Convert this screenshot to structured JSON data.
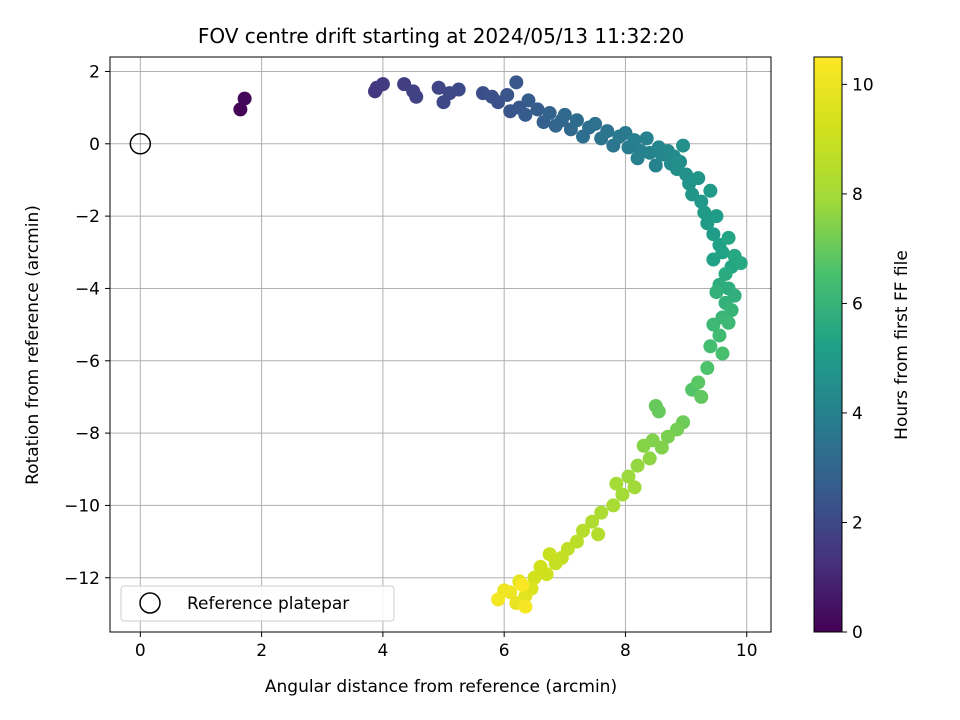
{
  "chart_data": {
    "type": "scatter",
    "title": "FOV centre drift starting at 2024/05/13 11:32:20",
    "xlabel": "Angular distance from reference (arcmin)",
    "ylabel": "Rotation from reference (arcmin)",
    "xlim": [
      -0.5,
      10.4
    ],
    "ylim": [
      -13.5,
      2.4
    ],
    "xticks": [
      0,
      2,
      4,
      6,
      8,
      10
    ],
    "yticks": [
      2,
      0,
      -2,
      -4,
      -6,
      -8,
      -10,
      -12
    ],
    "grid": true,
    "legend": {
      "placement": "lower-left",
      "entries": [
        "Reference platepar"
      ]
    },
    "reference_point": {
      "x": 0,
      "y": 0,
      "label": "Reference platepar"
    },
    "colorbar": {
      "label": "Hours from first FF file",
      "colormap": "viridis",
      "range": [
        0,
        10.5
      ],
      "ticks": [
        0,
        2,
        4,
        6,
        8,
        10
      ]
    },
    "series": [
      {
        "points": [
          [
            1.65,
            0.95,
            0.1
          ],
          [
            1.72,
            1.25,
            0.2
          ],
          [
            3.87,
            1.45,
            1.5
          ],
          [
            3.9,
            1.55,
            1.5
          ],
          [
            4.0,
            1.65,
            1.6
          ],
          [
            4.35,
            1.65,
            1.7
          ],
          [
            4.5,
            1.45,
            1.8
          ],
          [
            4.55,
            1.3,
            1.8
          ],
          [
            4.92,
            1.55,
            1.9
          ],
          [
            5.0,
            1.15,
            2.0
          ],
          [
            5.1,
            1.4,
            2.0
          ],
          [
            5.25,
            1.5,
            2.1
          ],
          [
            5.65,
            1.4,
            2.2
          ],
          [
            5.8,
            1.3,
            2.3
          ],
          [
            5.9,
            1.15,
            2.3
          ],
          [
            6.05,
            1.35,
            2.4
          ],
          [
            6.1,
            0.9,
            2.4
          ],
          [
            6.2,
            1.7,
            2.5
          ],
          [
            6.25,
            1.0,
            2.5
          ],
          [
            6.35,
            0.8,
            2.6
          ],
          [
            6.4,
            1.2,
            2.6
          ],
          [
            6.55,
            0.95,
            2.7
          ],
          [
            6.65,
            0.6,
            2.8
          ],
          [
            6.75,
            0.85,
            2.9
          ],
          [
            6.85,
            0.5,
            3.0
          ],
          [
            6.95,
            0.65,
            3.0
          ],
          [
            7.0,
            0.8,
            3.1
          ],
          [
            7.1,
            0.4,
            3.1
          ],
          [
            7.2,
            0.65,
            3.2
          ],
          [
            7.3,
            0.2,
            3.3
          ],
          [
            7.4,
            0.45,
            3.3
          ],
          [
            7.5,
            0.55,
            3.4
          ],
          [
            7.6,
            0.15,
            3.5
          ],
          [
            7.7,
            0.35,
            3.5
          ],
          [
            7.8,
            -0.05,
            3.6
          ],
          [
            7.9,
            0.2,
            3.7
          ],
          [
            8.0,
            0.3,
            3.7
          ],
          [
            8.05,
            -0.1,
            3.8
          ],
          [
            8.15,
            0.1,
            3.9
          ],
          [
            8.2,
            -0.4,
            4.0
          ],
          [
            8.25,
            -0.2,
            4.0
          ],
          [
            8.35,
            0.15,
            4.0
          ],
          [
            8.4,
            -0.25,
            4.1
          ],
          [
            8.5,
            -0.6,
            4.1
          ],
          [
            8.55,
            -0.1,
            4.2
          ],
          [
            8.6,
            -0.3,
            4.2
          ],
          [
            8.7,
            -0.2,
            4.3
          ],
          [
            8.75,
            -0.55,
            4.4
          ],
          [
            8.8,
            -0.35,
            4.4
          ],
          [
            8.85,
            -0.7,
            4.5
          ],
          [
            8.9,
            -0.5,
            4.5
          ],
          [
            8.95,
            -0.05,
            4.6
          ],
          [
            9.0,
            -0.85,
            4.6
          ],
          [
            9.05,
            -1.1,
            4.7
          ],
          [
            9.1,
            -1.4,
            4.8
          ],
          [
            9.2,
            -0.95,
            4.8
          ],
          [
            9.25,
            -1.6,
            4.9
          ],
          [
            9.3,
            -1.9,
            5.0
          ],
          [
            9.35,
            -2.2,
            5.0
          ],
          [
            9.4,
            -1.3,
            5.0
          ],
          [
            9.45,
            -2.5,
            5.1
          ],
          [
            9.5,
            -2.0,
            5.1
          ],
          [
            9.55,
            -2.8,
            5.2
          ],
          [
            9.45,
            -3.2,
            5.3
          ],
          [
            9.6,
            -3.0,
            5.3
          ],
          [
            9.7,
            -2.6,
            5.4
          ],
          [
            9.75,
            -3.4,
            5.4
          ],
          [
            9.8,
            -3.1,
            5.5
          ],
          [
            9.9,
            -3.3,
            5.5
          ],
          [
            9.65,
            -3.6,
            5.6
          ],
          [
            9.55,
            -3.9,
            5.7
          ],
          [
            9.7,
            -4.0,
            5.7
          ],
          [
            9.8,
            -4.2,
            5.8
          ],
          [
            9.65,
            -4.4,
            5.9
          ],
          [
            9.5,
            -4.1,
            5.9
          ],
          [
            9.75,
            -4.6,
            6.0
          ],
          [
            9.6,
            -4.8,
            6.1
          ],
          [
            9.45,
            -5.0,
            6.2
          ],
          [
            9.7,
            -4.95,
            6.2
          ],
          [
            9.55,
            -5.3,
            6.3
          ],
          [
            9.4,
            -5.6,
            6.4
          ],
          [
            9.6,
            -5.8,
            6.5
          ],
          [
            9.35,
            -6.2,
            6.6
          ],
          [
            9.1,
            -6.8,
            6.7
          ],
          [
            9.2,
            -6.6,
            6.8
          ],
          [
            9.25,
            -7.0,
            6.9
          ],
          [
            8.5,
            -7.25,
            7.0
          ],
          [
            8.55,
            -7.4,
            7.0
          ],
          [
            8.95,
            -7.7,
            7.1
          ],
          [
            8.85,
            -7.9,
            7.2
          ],
          [
            8.7,
            -8.1,
            7.3
          ],
          [
            8.6,
            -8.4,
            7.4
          ],
          [
            8.45,
            -8.2,
            7.4
          ],
          [
            8.3,
            -8.35,
            7.5
          ],
          [
            8.4,
            -8.7,
            7.6
          ],
          [
            8.2,
            -8.9,
            7.7
          ],
          [
            8.05,
            -9.2,
            7.8
          ],
          [
            8.15,
            -9.5,
            7.9
          ],
          [
            7.95,
            -9.7,
            8.0
          ],
          [
            7.85,
            -9.4,
            8.0
          ],
          [
            7.8,
            -10.0,
            8.1
          ],
          [
            7.6,
            -10.2,
            8.2
          ],
          [
            7.45,
            -10.45,
            8.3
          ],
          [
            7.55,
            -10.8,
            8.4
          ],
          [
            7.3,
            -10.7,
            8.5
          ],
          [
            7.2,
            -11.0,
            8.6
          ],
          [
            7.05,
            -11.2,
            8.7
          ],
          [
            6.95,
            -11.45,
            8.8
          ],
          [
            6.85,
            -11.6,
            8.9
          ],
          [
            6.75,
            -11.35,
            9.0
          ],
          [
            6.7,
            -11.9,
            9.1
          ],
          [
            6.6,
            -11.7,
            9.2
          ],
          [
            6.5,
            -12.0,
            9.3
          ],
          [
            6.45,
            -12.3,
            9.5
          ],
          [
            6.35,
            -12.5,
            9.7
          ],
          [
            6.25,
            -12.1,
            9.8
          ],
          [
            6.2,
            -12.7,
            9.9
          ],
          [
            6.1,
            -12.4,
            10.0
          ],
          [
            6.0,
            -12.35,
            10.1
          ],
          [
            5.9,
            -12.6,
            10.2
          ],
          [
            6.35,
            -12.8,
            10.3
          ],
          [
            6.3,
            -12.2,
            10.4
          ]
        ]
      }
    ]
  }
}
